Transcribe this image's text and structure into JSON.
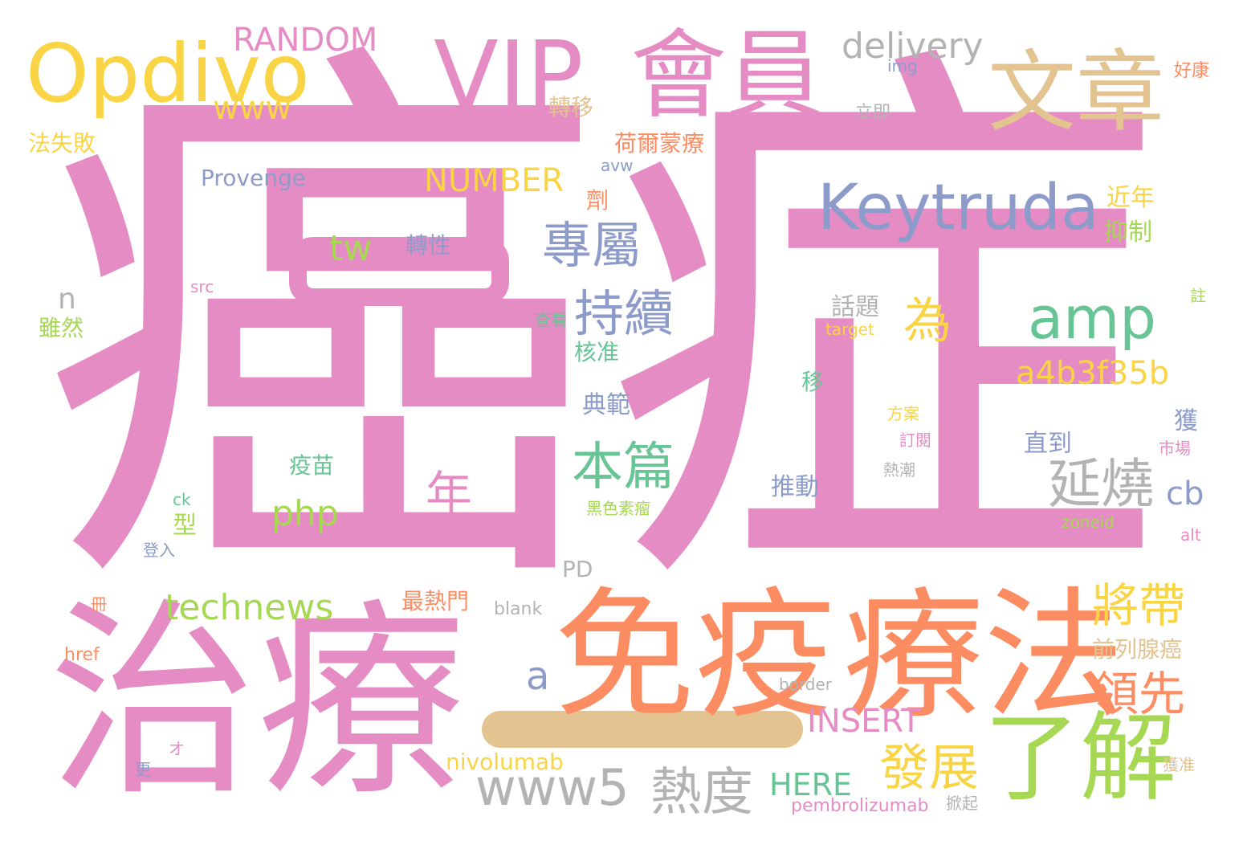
{
  "colors": {
    "pink": "#e58cc4",
    "yellow": "#f9d444",
    "tan": "#e3c38f",
    "blue": "#8d9bcb",
    "green": "#67c595",
    "lime": "#a6d854",
    "orange": "#fc8d62",
    "gray": "#b3b3b3"
  },
  "words": [
    "癌症",
    "治療",
    "免疫",
    "療法",
    "了解",
    "會員",
    "文章",
    "VIP",
    "Opdivo",
    "Keytruda",
    "amp",
    "專屬",
    "持續",
    "本篇",
    "延燒",
    "熱度",
    "www5",
    "將帶",
    "領先",
    "發展",
    "為",
    "a4b3f35b",
    "technews",
    "php",
    "年",
    "cb",
    "a",
    "INSERT",
    "HERE",
    "RANDOM",
    "delivery",
    "www",
    "NUMBER",
    "tw",
    "Provenge",
    "荷爾蒙療",
    "轉移",
    "法失敗",
    "n",
    "雖然",
    "nivolumab",
    "pembrolizumab",
    "PD",
    "blank",
    "border",
    "href",
    "最熱門",
    "前列腺癌",
    "img",
    "立即",
    "好康",
    "avw",
    "劑",
    "轉性",
    "近年",
    "抑制",
    "話題",
    "target",
    "查看",
    "核准",
    "移",
    "典範",
    "方案",
    "訂閱",
    "熱潮",
    "獲",
    "市場",
    "直到",
    "疫苗",
    "推動",
    "黑色素瘤",
    "型",
    "ck",
    "登入",
    "zoneid",
    "alt",
    "src",
    "註",
    "冊",
    "オ",
    "更",
    "獲准",
    "掀起"
  ]
}
